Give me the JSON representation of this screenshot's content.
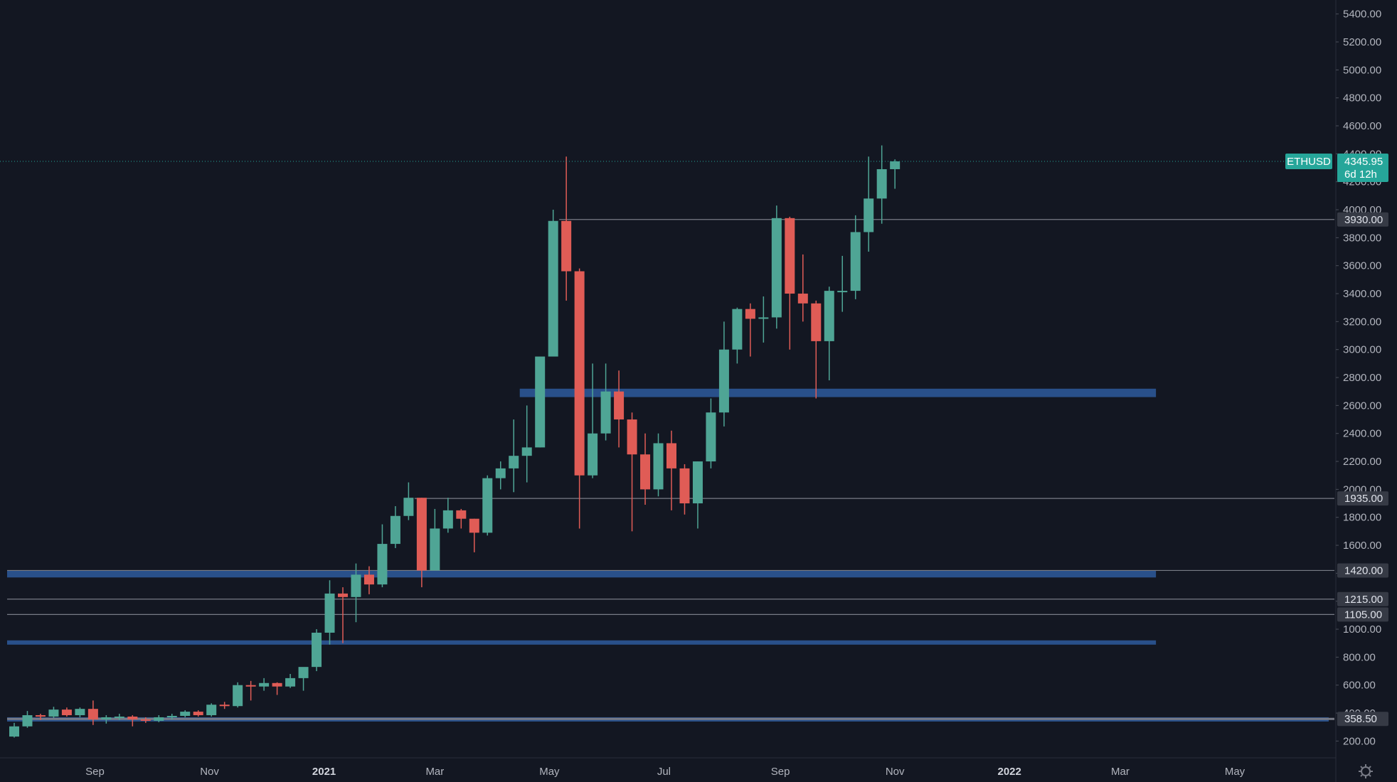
{
  "chart_data": {
    "type": "candlestick",
    "symbol": "ETHUSD",
    "colors": {
      "background": "#131722",
      "up": "#4fa595",
      "down": "#e05c56",
      "level_line": "#787b86",
      "zone": "#2e5a9c",
      "price_tag": "#26a69a",
      "axis_text": "#b2b5be",
      "level_tag": "#363a45"
    },
    "y_axis": {
      "min": 80,
      "max": 5500,
      "ticks": [
        200,
        400,
        600,
        800,
        1000,
        1200,
        1400,
        1600,
        1800,
        2000,
        2200,
        2400,
        2600,
        2800,
        3000,
        3200,
        3400,
        3600,
        3800,
        4000,
        4200,
        4400,
        4600,
        4800,
        5000,
        5200,
        5400
      ],
      "tick_labels": [
        "200.00",
        "400.00",
        "600.00",
        "800.00",
        "1000.00",
        "1200.00",
        "1400.00",
        "1600.00",
        "1800.00",
        "2000.00",
        "2200.00",
        "2400.00",
        "2600.00",
        "2800.00",
        "3000.00",
        "3200.00",
        "3400.00",
        "3600.00",
        "3800.00",
        "4000.00",
        "4200.00",
        "4400.00",
        "4600.00",
        "4800.00",
        "5000.00",
        "5200.00",
        "5400.00"
      ]
    },
    "x_axis": {
      "start": "2020-07-20",
      "end": "2022-06-20",
      "ticks": [
        {
          "date": "2020-09-01",
          "label": "Sep",
          "bold": false
        },
        {
          "date": "2020-11-01",
          "label": "Nov",
          "bold": false
        },
        {
          "date": "2021-01-01",
          "label": "2021",
          "bold": true
        },
        {
          "date": "2021-03-01",
          "label": "Mar",
          "bold": false
        },
        {
          "date": "2021-05-01",
          "label": "May",
          "bold": false
        },
        {
          "date": "2021-07-01",
          "label": "Jul",
          "bold": false
        },
        {
          "date": "2021-09-01",
          "label": "Sep",
          "bold": false
        },
        {
          "date": "2021-11-01",
          "label": "Nov",
          "bold": false
        },
        {
          "date": "2022-01-01",
          "label": "2022",
          "bold": true
        },
        {
          "date": "2022-03-01",
          "label": "Mar",
          "bold": false
        },
        {
          "date": "2022-05-01",
          "label": "May",
          "bold": false
        }
      ]
    },
    "candles": [
      {
        "date": "2020-07-20",
        "open": 232,
        "high": 330,
        "low": 225,
        "close": 305
      },
      {
        "date": "2020-07-27",
        "open": 305,
        "high": 415,
        "low": 295,
        "close": 385
      },
      {
        "date": "2020-08-03",
        "open": 385,
        "high": 395,
        "low": 350,
        "close": 375
      },
      {
        "date": "2020-08-10",
        "open": 375,
        "high": 445,
        "low": 365,
        "close": 425
      },
      {
        "date": "2020-08-17",
        "open": 425,
        "high": 440,
        "low": 375,
        "close": 385
      },
      {
        "date": "2020-08-24",
        "open": 385,
        "high": 440,
        "low": 370,
        "close": 430
      },
      {
        "date": "2020-08-31",
        "open": 430,
        "high": 490,
        "low": 315,
        "close": 355
      },
      {
        "date": "2020-09-07",
        "open": 355,
        "high": 385,
        "low": 325,
        "close": 370
      },
      {
        "date": "2020-09-14",
        "open": 370,
        "high": 395,
        "low": 350,
        "close": 375
      },
      {
        "date": "2020-09-21",
        "open": 375,
        "high": 385,
        "low": 305,
        "close": 355
      },
      {
        "date": "2020-09-28",
        "open": 355,
        "high": 370,
        "low": 330,
        "close": 345
      },
      {
        "date": "2020-10-05",
        "open": 345,
        "high": 385,
        "low": 335,
        "close": 370
      },
      {
        "date": "2020-10-12",
        "open": 370,
        "high": 395,
        "low": 355,
        "close": 380
      },
      {
        "date": "2020-10-19",
        "open": 380,
        "high": 420,
        "low": 370,
        "close": 410
      },
      {
        "date": "2020-10-26",
        "open": 410,
        "high": 420,
        "low": 375,
        "close": 385
      },
      {
        "date": "2020-11-02",
        "open": 385,
        "high": 470,
        "low": 375,
        "close": 460
      },
      {
        "date": "2020-11-09",
        "open": 460,
        "high": 480,
        "low": 430,
        "close": 450
      },
      {
        "date": "2020-11-16",
        "open": 450,
        "high": 620,
        "low": 440,
        "close": 600
      },
      {
        "date": "2020-11-23",
        "open": 600,
        "high": 630,
        "low": 490,
        "close": 590
      },
      {
        "date": "2020-11-30",
        "open": 590,
        "high": 650,
        "low": 560,
        "close": 615
      },
      {
        "date": "2020-12-07",
        "open": 615,
        "high": 620,
        "low": 530,
        "close": 590
      },
      {
        "date": "2020-12-14",
        "open": 590,
        "high": 680,
        "low": 580,
        "close": 650
      },
      {
        "date": "2020-12-21",
        "open": 650,
        "high": 720,
        "low": 560,
        "close": 730
      },
      {
        "date": "2020-12-28",
        "open": 730,
        "high": 1000,
        "low": 700,
        "close": 975
      },
      {
        "date": "2021-01-04",
        "open": 975,
        "high": 1350,
        "low": 890,
        "close": 1255
      },
      {
        "date": "2021-01-11",
        "open": 1255,
        "high": 1300,
        "low": 900,
        "close": 1230
      },
      {
        "date": "2021-01-18",
        "open": 1230,
        "high": 1470,
        "low": 1050,
        "close": 1390
      },
      {
        "date": "2021-01-25",
        "open": 1390,
        "high": 1450,
        "low": 1250,
        "close": 1320
      },
      {
        "date": "2021-02-01",
        "open": 1320,
        "high": 1750,
        "low": 1300,
        "close": 1610
      },
      {
        "date": "2021-02-08",
        "open": 1610,
        "high": 1880,
        "low": 1580,
        "close": 1810
      },
      {
        "date": "2021-02-15",
        "open": 1810,
        "high": 2050,
        "low": 1780,
        "close": 1940
      },
      {
        "date": "2021-02-22",
        "open": 1940,
        "high": 1940,
        "low": 1300,
        "close": 1420
      },
      {
        "date": "2021-03-01",
        "open": 1420,
        "high": 1860,
        "low": 1420,
        "close": 1720
      },
      {
        "date": "2021-03-08",
        "open": 1720,
        "high": 1940,
        "low": 1690,
        "close": 1850
      },
      {
        "date": "2021-03-15",
        "open": 1850,
        "high": 1860,
        "low": 1720,
        "close": 1790
      },
      {
        "date": "2021-03-22",
        "open": 1790,
        "high": 1790,
        "low": 1550,
        "close": 1690
      },
      {
        "date": "2021-03-29",
        "open": 1690,
        "high": 2100,
        "low": 1670,
        "close": 2080
      },
      {
        "date": "2021-04-05",
        "open": 2080,
        "high": 2200,
        "low": 2000,
        "close": 2150
      },
      {
        "date": "2021-04-12",
        "open": 2150,
        "high": 2500,
        "low": 1980,
        "close": 2240
      },
      {
        "date": "2021-04-19",
        "open": 2240,
        "high": 2600,
        "low": 2050,
        "close": 2300
      },
      {
        "date": "2021-04-26",
        "open": 2300,
        "high": 2950,
        "low": 2300,
        "close": 2950
      },
      {
        "date": "2021-05-03",
        "open": 2950,
        "high": 4000,
        "low": 2950,
        "close": 3920
      },
      {
        "date": "2021-05-10",
        "open": 3920,
        "high": 4380,
        "low": 3350,
        "close": 3560
      },
      {
        "date": "2021-05-17",
        "open": 3560,
        "high": 3580,
        "low": 1720,
        "close": 2100
      },
      {
        "date": "2021-05-24",
        "open": 2100,
        "high": 2900,
        "low": 2080,
        "close": 2400
      },
      {
        "date": "2021-05-31",
        "open": 2400,
        "high": 2900,
        "low": 2350,
        "close": 2700
      },
      {
        "date": "2021-06-07",
        "open": 2700,
        "high": 2850,
        "low": 2300,
        "close": 2500
      },
      {
        "date": "2021-06-14",
        "open": 2500,
        "high": 2550,
        "low": 1700,
        "close": 2250
      },
      {
        "date": "2021-06-21",
        "open": 2250,
        "high": 2400,
        "low": 1890,
        "close": 2000
      },
      {
        "date": "2021-06-28",
        "open": 2000,
        "high": 2400,
        "low": 1950,
        "close": 2330
      },
      {
        "date": "2021-07-05",
        "open": 2330,
        "high": 2420,
        "low": 1850,
        "close": 2150
      },
      {
        "date": "2021-07-12",
        "open": 2150,
        "high": 2180,
        "low": 1820,
        "close": 1900
      },
      {
        "date": "2021-07-19",
        "open": 1900,
        "high": 2200,
        "low": 1720,
        "close": 2200
      },
      {
        "date": "2021-07-26",
        "open": 2200,
        "high": 2650,
        "low": 2150,
        "close": 2550
      },
      {
        "date": "2021-08-02",
        "open": 2550,
        "high": 3200,
        "low": 2450,
        "close": 3000
      },
      {
        "date": "2021-08-09",
        "open": 3000,
        "high": 3300,
        "low": 2900,
        "close": 3290
      },
      {
        "date": "2021-08-16",
        "open": 3290,
        "high": 3330,
        "low": 2950,
        "close": 3220
      },
      {
        "date": "2021-08-23",
        "open": 3220,
        "high": 3380,
        "low": 3050,
        "close": 3230
      },
      {
        "date": "2021-08-30",
        "open": 3230,
        "high": 4030,
        "low": 3150,
        "close": 3940
      },
      {
        "date": "2021-09-06",
        "open": 3940,
        "high": 3950,
        "low": 3000,
        "close": 3400
      },
      {
        "date": "2021-09-13",
        "open": 3400,
        "high": 3680,
        "low": 3200,
        "close": 3330
      },
      {
        "date": "2021-09-20",
        "open": 3330,
        "high": 3350,
        "low": 2650,
        "close": 3060
      },
      {
        "date": "2021-09-27",
        "open": 3060,
        "high": 3450,
        "low": 2780,
        "close": 3420
      },
      {
        "date": "2021-10-04",
        "open": 3420,
        "high": 3670,
        "low": 3270,
        "close": 3420
      },
      {
        "date": "2021-10-11",
        "open": 3420,
        "high": 3960,
        "low": 3360,
        "close": 3840
      },
      {
        "date": "2021-10-18",
        "open": 3840,
        "high": 4380,
        "low": 3700,
        "close": 4080
      },
      {
        "date": "2021-10-25",
        "open": 4080,
        "high": 4460,
        "low": 3900,
        "close": 4290
      },
      {
        "date": "2021-11-01",
        "open": 4290,
        "high": 4360,
        "low": 4150,
        "close": 4346
      }
    ],
    "horizontal_levels": [
      {
        "price": 3930,
        "label": "3930.00",
        "start": "2021-05-10"
      },
      {
        "price": 1935,
        "label": "1935.00",
        "start": "2021-02-22"
      },
      {
        "price": 1420,
        "label": "1420.00",
        "start": "2020-07-20"
      },
      {
        "price": 1215,
        "label": "1215.00",
        "start": "2020-07-20"
      },
      {
        "price": 1105,
        "label": "1105.00",
        "start": "2020-07-20"
      },
      {
        "price": 358.5,
        "label": "358.50",
        "start": "2020-07-20"
      }
    ],
    "zones": [
      {
        "low": 2660,
        "high": 2720,
        "start": "2021-04-19",
        "end": "2022-03-20"
      },
      {
        "low": 1370,
        "high": 1420,
        "start": "2020-07-20",
        "end": "2022-03-20"
      },
      {
        "low": 890,
        "high": 920,
        "start": "2020-07-20",
        "end": "2022-03-20"
      },
      {
        "low": 345,
        "high": 370,
        "start": "2020-07-20",
        "end": "2022-06-20"
      }
    ],
    "current_price": {
      "value": 4345.95,
      "label": "4345.95",
      "countdown": "6d 12h",
      "symbol_label": "ETHUSD"
    },
    "settings_icon": "gear-icon"
  }
}
